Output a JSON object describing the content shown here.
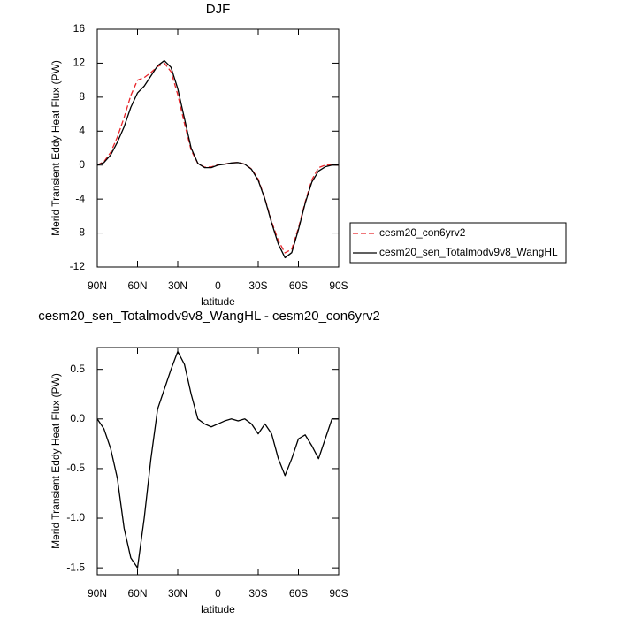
{
  "chart_data": [
    {
      "type": "line",
      "title": "DJF",
      "xlabel": "latitude",
      "ylabel": "Merid Transient Eddy Heat Flux (PW)",
      "x": [
        90,
        85,
        80,
        75,
        70,
        65,
        60,
        55,
        50,
        45,
        40,
        35,
        30,
        25,
        20,
        15,
        10,
        5,
        0,
        -5,
        -10,
        -15,
        -20,
        -25,
        -30,
        -35,
        -40,
        -45,
        -50,
        -55,
        -60,
        -65,
        -70,
        -75,
        -80,
        -85,
        -90
      ],
      "xlim": [
        90,
        -90
      ],
      "xticks": [
        {
          "value": 90,
          "label": "90N"
        },
        {
          "value": 60,
          "label": "60N"
        },
        {
          "value": 30,
          "label": "30N"
        },
        {
          "value": 0,
          "label": "0"
        },
        {
          "value": -30,
          "label": "30S"
        },
        {
          "value": -60,
          "label": "60S"
        },
        {
          "value": -90,
          "label": "90S"
        }
      ],
      "ylim": [
        -12,
        16
      ],
      "yticks": [
        -12,
        -8,
        -4,
        0,
        4,
        8,
        12,
        16
      ],
      "legend": "right",
      "series": [
        {
          "name": "cesm20_con6yrv2",
          "color": "#e8262b",
          "dash": true,
          "values": [
            0,
            0.4,
            1.5,
            3.3,
            5.6,
            8.2,
            10.0,
            10.3,
            10.9,
            11.6,
            12.0,
            11.0,
            8.3,
            4.9,
            1.75,
            0.2,
            -0.25,
            -0.22,
            0.05,
            0.12,
            0.25,
            0.32,
            0.1,
            -0.45,
            -1.65,
            -3.95,
            -6.65,
            -8.9,
            -10.33,
            -9.9,
            -7.4,
            -4.34,
            -1.73,
            -0.3,
            0,
            0,
            0
          ]
        },
        {
          "name": "cesm20_sen_Totalmodv9v8_WangHL",
          "color": "#000000",
          "dash": false,
          "values": [
            0,
            0.3,
            1.2,
            2.7,
            4.5,
            6.8,
            8.5,
            9.3,
            10.5,
            11.7,
            12.3,
            11.5,
            9.0,
            5.5,
            2.0,
            0.2,
            -0.3,
            -0.3,
            0,
            0.1,
            0.25,
            0.3,
            0.1,
            -0.5,
            -1.8,
            -4.0,
            -6.8,
            -9.3,
            -10.9,
            -10.3,
            -7.6,
            -4.5,
            -2.0,
            -0.7,
            -0.2,
            0,
            0
          ]
        }
      ]
    },
    {
      "type": "line",
      "title": "cesm20_sen_Totalmodv9v8_WangHL - cesm20_con6yrv2",
      "xlabel": "latitude",
      "ylabel": "Merid Transient Eddy Heat Flux (PW)",
      "x": [
        90,
        85,
        80,
        75,
        70,
        65,
        60,
        55,
        50,
        45,
        40,
        35,
        30,
        25,
        20,
        15,
        10,
        5,
        0,
        -5,
        -10,
        -15,
        -20,
        -25,
        -30,
        -35,
        -40,
        -45,
        -50,
        -55,
        -60,
        -65,
        -70,
        -75,
        -80,
        -85,
        -90
      ],
      "xlim": [
        90,
        -90
      ],
      "xticks": [
        {
          "value": 90,
          "label": "90N"
        },
        {
          "value": 60,
          "label": "60N"
        },
        {
          "value": 30,
          "label": "30N"
        },
        {
          "value": 0,
          "label": "0"
        },
        {
          "value": -30,
          "label": "30S"
        },
        {
          "value": -60,
          "label": "60S"
        },
        {
          "value": -90,
          "label": "90S"
        }
      ],
      "ylim": [
        -1.57,
        0.72
      ],
      "yticks": [
        {
          "value": -1.5,
          "label": "-1.5"
        },
        {
          "value": -1.0,
          "label": "-1.0"
        },
        {
          "value": -0.5,
          "label": "-0.5"
        },
        {
          "value": 0,
          "label": "0.0"
        },
        {
          "value": 0.5,
          "label": "0.5"
        }
      ],
      "series": [
        {
          "color": "#000000",
          "dash": false,
          "values": [
            0,
            -0.1,
            -0.3,
            -0.6,
            -1.1,
            -1.4,
            -1.5,
            -1.0,
            -0.4,
            0.1,
            0.3,
            0.5,
            0.68,
            0.55,
            0.25,
            0.0,
            -0.05,
            -0.08,
            -0.05,
            -0.02,
            0.0,
            -0.02,
            0.0,
            -0.05,
            -0.15,
            -0.05,
            -0.15,
            -0.4,
            -0.57,
            -0.4,
            -0.2,
            -0.16,
            -0.27,
            -0.4,
            -0.2,
            0,
            0
          ]
        }
      ]
    }
  ]
}
